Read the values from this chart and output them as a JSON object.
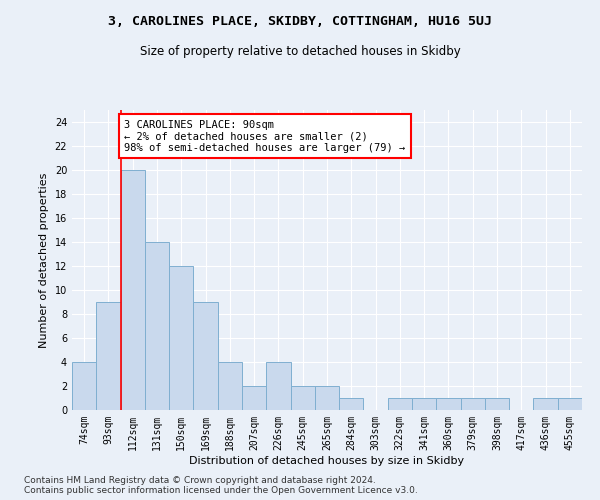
{
  "title1": "3, CAROLINES PLACE, SKIDBY, COTTINGHAM, HU16 5UJ",
  "title2": "Size of property relative to detached houses in Skidby",
  "xlabel": "Distribution of detached houses by size in Skidby",
  "ylabel": "Number of detached properties",
  "categories": [
    "74sqm",
    "93sqm",
    "112sqm",
    "131sqm",
    "150sqm",
    "169sqm",
    "188sqm",
    "207sqm",
    "226sqm",
    "245sqm",
    "265sqm",
    "284sqm",
    "303sqm",
    "322sqm",
    "341sqm",
    "360sqm",
    "379sqm",
    "398sqm",
    "417sqm",
    "436sqm",
    "455sqm"
  ],
  "values": [
    4,
    9,
    20,
    14,
    12,
    9,
    4,
    2,
    4,
    2,
    2,
    1,
    0,
    1,
    1,
    1,
    1,
    1,
    0,
    1,
    1
  ],
  "bar_color": "#c9d9ed",
  "bar_edge_color": "#7fafd0",
  "annotation_text": "3 CAROLINES PLACE: 90sqm\n← 2% of detached houses are smaller (2)\n98% of semi-detached houses are larger (79) →",
  "annotation_box_color": "white",
  "annotation_box_edge_color": "red",
  "vline_color": "red",
  "vline_x": 1.5,
  "ylim": [
    0,
    25
  ],
  "yticks": [
    0,
    2,
    4,
    6,
    8,
    10,
    12,
    14,
    16,
    18,
    20,
    22,
    24
  ],
  "footer_text": "Contains HM Land Registry data © Crown copyright and database right 2024.\nContains public sector information licensed under the Open Government Licence v3.0.",
  "bg_color": "#eaf0f8",
  "plot_bg_color": "#eaf0f8",
  "grid_color": "white",
  "title1_fontsize": 9.5,
  "title2_fontsize": 8.5,
  "xlabel_fontsize": 8,
  "ylabel_fontsize": 8,
  "tick_fontsize": 7,
  "annotation_fontsize": 7.5,
  "footer_fontsize": 6.5
}
